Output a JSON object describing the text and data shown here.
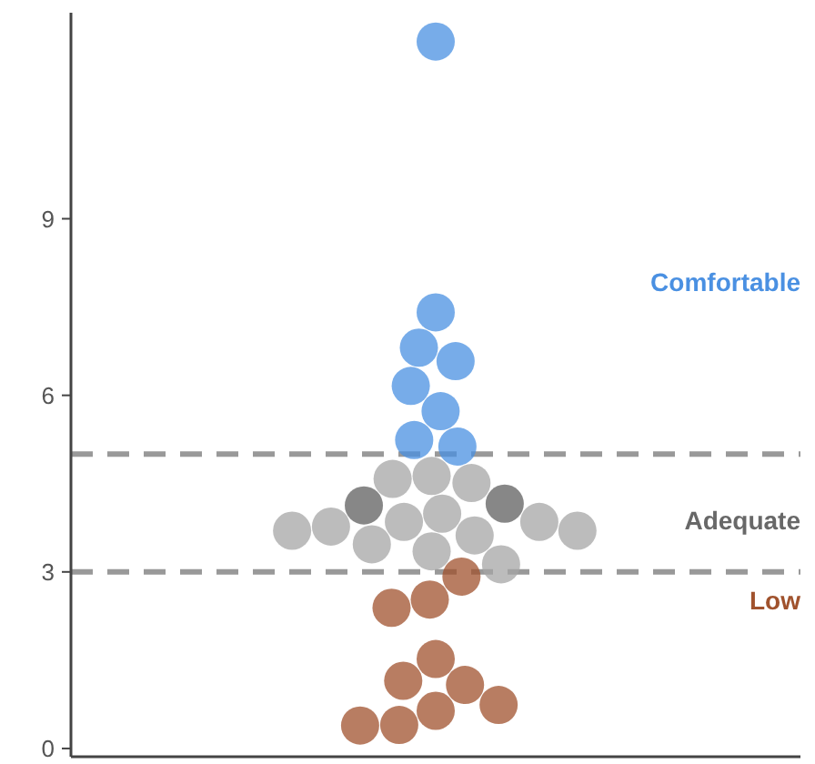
{
  "chart_data": {
    "type": "scatter",
    "categories": [
      null
    ],
    "ylim": [
      -0.14,
      12.5
    ],
    "yticks": [
      0,
      3,
      6,
      9
    ],
    "grid": false,
    "marker": "circle",
    "legend": "right",
    "series": [
      {
        "name": "Comfortable",
        "color": "#4a90e2",
        "x": [
          null,
          null,
          null,
          null,
          null,
          null,
          null,
          null
        ],
        "values": [
          12.01,
          7.41,
          6.81,
          6.58,
          6.16,
          5.73,
          5.13,
          5.24
        ]
      },
      {
        "name": "Adequate",
        "color": "#a6a6a6",
        "x": [
          null,
          null,
          null,
          null,
          null,
          null,
          null,
          null,
          null,
          null,
          null,
          null,
          null
        ],
        "values": [
          4.58,
          4.63,
          4.51,
          3.99,
          3.85,
          3.7,
          3.62,
          3.77,
          3.85,
          3.7,
          3.35,
          3.47,
          3.13
        ]
      },
      {
        "color": "#5f5f5f",
        "x": [
          null,
          null
        ],
        "values": [
          4.16,
          4.13
        ]
      },
      {
        "name": "Low",
        "color": "#a0522d",
        "x": [
          null,
          null,
          null,
          null,
          null,
          null,
          null,
          null,
          null,
          null
        ],
        "values": [
          2.92,
          2.39,
          2.53,
          1.52,
          1.15,
          1.08,
          0.74,
          0.64,
          0.4,
          0.39
        ]
      }
    ],
    "ref_lines": [
      {
        "axis": "y",
        "value": 5,
        "color": "#999999",
        "line_style": "dashed"
      },
      {
        "axis": "y",
        "value": 3,
        "color": "#999999",
        "line_style": "dashed"
      }
    ]
  }
}
